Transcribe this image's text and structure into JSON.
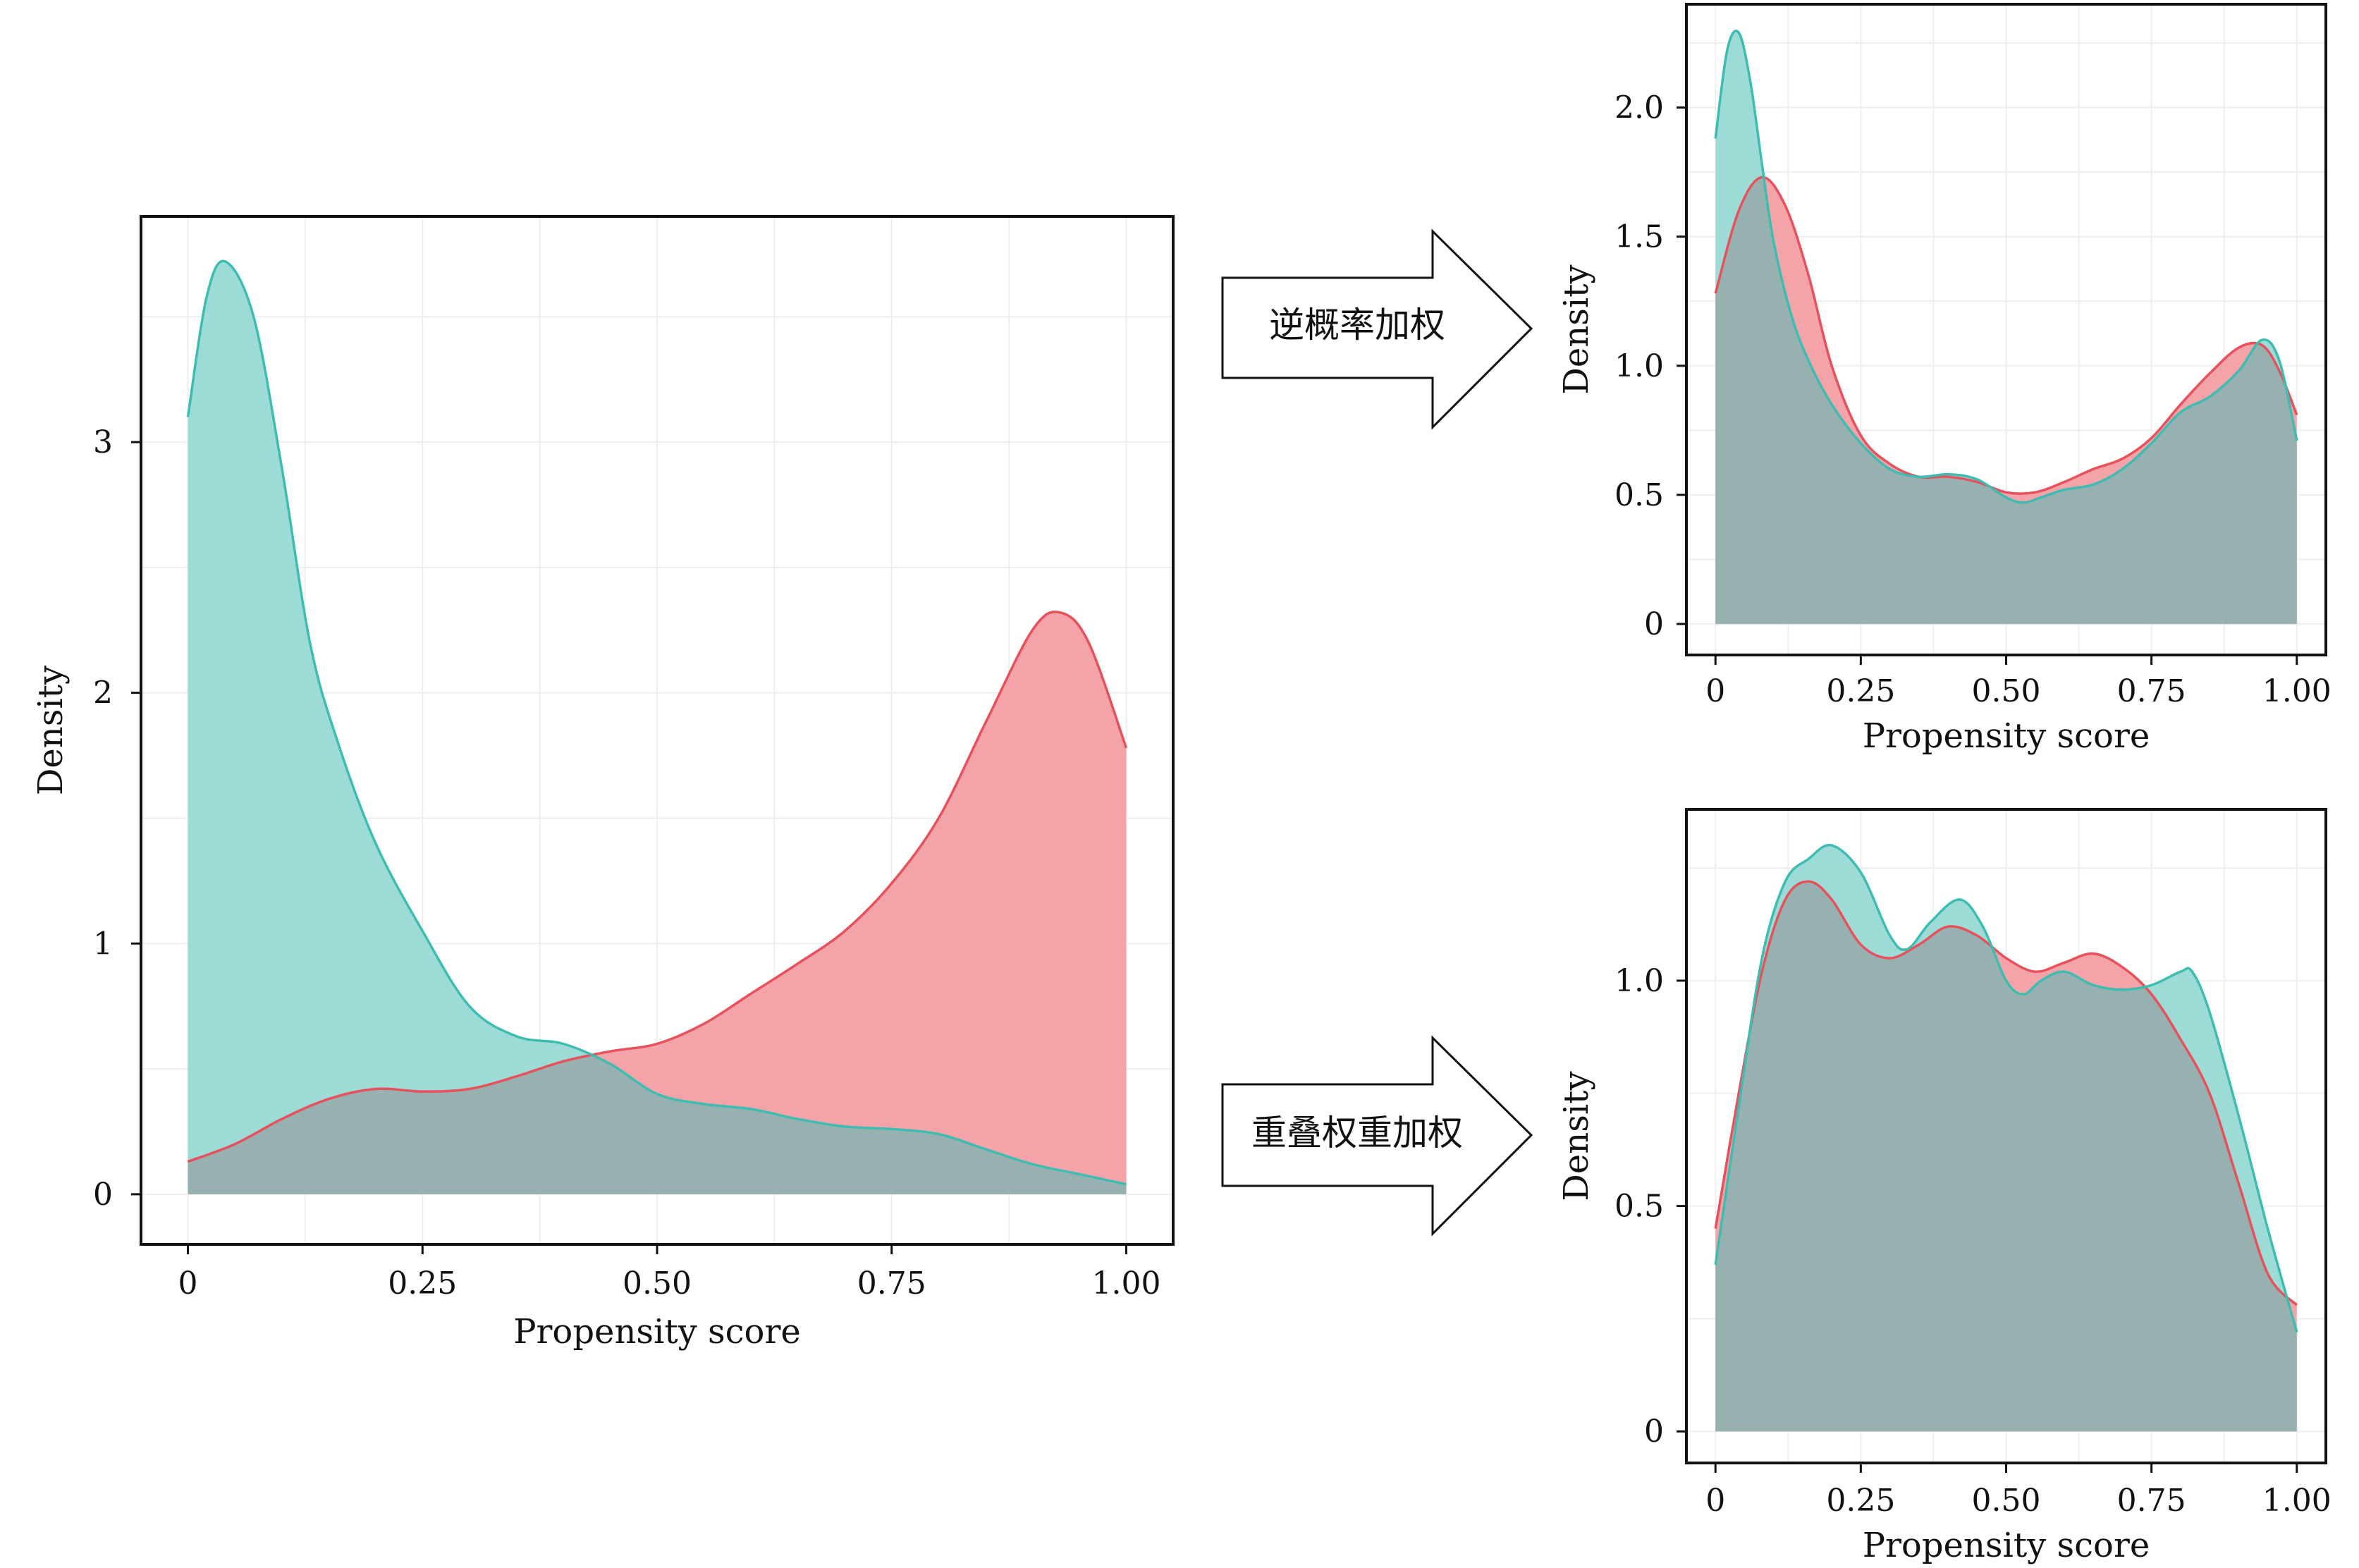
{
  "colors": {
    "treated": "#e8505b",
    "treated_fill": "#f4a3a9",
    "control": "#3dbdb2",
    "control_fill": "#9ddcd6",
    "overlap_fill": "#97b1b0",
    "frame": "#111111",
    "grid": "#eeeeee"
  },
  "arrows": [
    {
      "label": "逆概率加权",
      "icon": "right-arrow-icon"
    },
    {
      "label": "重叠权重加权",
      "icon": "right-arrow-icon"
    }
  ],
  "chart_data": [
    {
      "id": "unweighted",
      "type": "area",
      "xlabel": "Propensity score",
      "ylabel": "Density",
      "xlim": [
        -0.05,
        1.05
      ],
      "ylim": [
        -0.2,
        3.9
      ],
      "xticks": [
        0,
        0.25,
        0.5,
        0.75,
        1.0
      ],
      "xtick_labels": [
        "0",
        "0.25",
        "0.50",
        "0.75",
        "1.00"
      ],
      "yticks": [
        0,
        1,
        2,
        3
      ],
      "ytick_labels": [
        "0",
        "1",
        "2",
        "3"
      ],
      "grid": true,
      "series": [
        {
          "key": "treated",
          "x": [
            0,
            0.05,
            0.1,
            0.15,
            0.2,
            0.25,
            0.3,
            0.35,
            0.4,
            0.45,
            0.5,
            0.55,
            0.6,
            0.65,
            0.7,
            0.75,
            0.8,
            0.85,
            0.9,
            0.93,
            0.96,
            1.0
          ],
          "y": [
            0.13,
            0.2,
            0.3,
            0.38,
            0.42,
            0.41,
            0.42,
            0.47,
            0.53,
            0.57,
            0.6,
            0.68,
            0.8,
            0.92,
            1.05,
            1.24,
            1.5,
            1.88,
            2.25,
            2.32,
            2.2,
            1.78
          ]
        },
        {
          "key": "control",
          "x": [
            0,
            0.02,
            0.04,
            0.07,
            0.1,
            0.13,
            0.16,
            0.2,
            0.25,
            0.3,
            0.35,
            0.4,
            0.45,
            0.5,
            0.55,
            0.6,
            0.65,
            0.7,
            0.75,
            0.8,
            0.85,
            0.9,
            0.95,
            1.0
          ],
          "y": [
            3.1,
            3.58,
            3.72,
            3.5,
            2.9,
            2.2,
            1.8,
            1.4,
            1.05,
            0.75,
            0.63,
            0.6,
            0.52,
            0.4,
            0.36,
            0.34,
            0.3,
            0.27,
            0.26,
            0.24,
            0.18,
            0.12,
            0.08,
            0.04
          ]
        }
      ]
    },
    {
      "id": "ipw",
      "type": "area",
      "xlabel": "Propensity score",
      "ylabel": "Density",
      "xlim": [
        -0.05,
        1.05
      ],
      "ylim": [
        -0.12,
        2.4
      ],
      "xticks": [
        0,
        0.25,
        0.5,
        0.75,
        1.0
      ],
      "xtick_labels": [
        "0",
        "0.25",
        "0.50",
        "0.75",
        "1.00"
      ],
      "yticks": [
        0,
        0.5,
        1.0,
        1.5,
        2.0
      ],
      "ytick_labels": [
        "0",
        "0.5",
        "1.0",
        "1.5",
        "2.0"
      ],
      "grid": true,
      "series": [
        {
          "key": "treated",
          "x": [
            0,
            0.04,
            0.08,
            0.12,
            0.16,
            0.2,
            0.25,
            0.3,
            0.35,
            0.4,
            0.45,
            0.5,
            0.55,
            0.6,
            0.65,
            0.7,
            0.75,
            0.8,
            0.85,
            0.9,
            0.94,
            0.97,
            1.0
          ],
          "y": [
            1.28,
            1.6,
            1.73,
            1.62,
            1.35,
            1.0,
            0.73,
            0.62,
            0.57,
            0.57,
            0.55,
            0.51,
            0.51,
            0.55,
            0.6,
            0.64,
            0.72,
            0.85,
            0.97,
            1.07,
            1.08,
            0.98,
            0.81
          ]
        },
        {
          "key": "control",
          "x": [
            0,
            0.02,
            0.04,
            0.06,
            0.08,
            0.1,
            0.13,
            0.16,
            0.2,
            0.25,
            0.3,
            0.35,
            0.4,
            0.45,
            0.5,
            0.53,
            0.56,
            0.6,
            0.65,
            0.7,
            0.75,
            0.8,
            0.85,
            0.9,
            0.94,
            0.97,
            1.0
          ],
          "y": [
            1.88,
            2.22,
            2.29,
            2.1,
            1.78,
            1.48,
            1.2,
            1.02,
            0.85,
            0.7,
            0.6,
            0.57,
            0.58,
            0.56,
            0.49,
            0.47,
            0.49,
            0.52,
            0.54,
            0.6,
            0.7,
            0.82,
            0.88,
            0.98,
            1.1,
            1.02,
            0.71
          ]
        }
      ]
    },
    {
      "id": "overlap",
      "type": "area",
      "xlabel": "Propensity score",
      "ylabel": "Density",
      "xlim": [
        -0.05,
        1.05
      ],
      "ylim": [
        -0.07,
        1.38
      ],
      "xticks": [
        0,
        0.25,
        0.5,
        0.75,
        1.0
      ],
      "xtick_labels": [
        "0",
        "0.25",
        "0.50",
        "0.75",
        "1.00"
      ],
      "yticks": [
        0,
        0.5,
        1.0
      ],
      "ytick_labels": [
        "0",
        "0.5",
        "1.0"
      ],
      "grid": true,
      "series": [
        {
          "key": "treated",
          "x": [
            0,
            0.04,
            0.08,
            0.12,
            0.16,
            0.2,
            0.25,
            0.3,
            0.35,
            0.4,
            0.45,
            0.5,
            0.55,
            0.6,
            0.65,
            0.7,
            0.75,
            0.8,
            0.85,
            0.9,
            0.95,
            1.0
          ],
          "y": [
            0.45,
            0.75,
            1.02,
            1.18,
            1.22,
            1.18,
            1.08,
            1.05,
            1.08,
            1.12,
            1.1,
            1.05,
            1.02,
            1.04,
            1.06,
            1.03,
            0.97,
            0.87,
            0.75,
            0.55,
            0.35,
            0.28
          ]
        },
        {
          "key": "control",
          "x": [
            0,
            0.04,
            0.08,
            0.12,
            0.16,
            0.2,
            0.25,
            0.3,
            0.33,
            0.37,
            0.42,
            0.46,
            0.5,
            0.53,
            0.56,
            0.6,
            0.65,
            0.7,
            0.75,
            0.8,
            0.82,
            0.85,
            0.9,
            0.95,
            1.0
          ],
          "y": [
            0.37,
            0.72,
            1.05,
            1.22,
            1.27,
            1.3,
            1.24,
            1.1,
            1.07,
            1.13,
            1.18,
            1.12,
            1.0,
            0.97,
            1.0,
            1.02,
            0.99,
            0.98,
            0.99,
            1.02,
            1.02,
            0.93,
            0.7,
            0.45,
            0.22
          ]
        }
      ]
    }
  ]
}
